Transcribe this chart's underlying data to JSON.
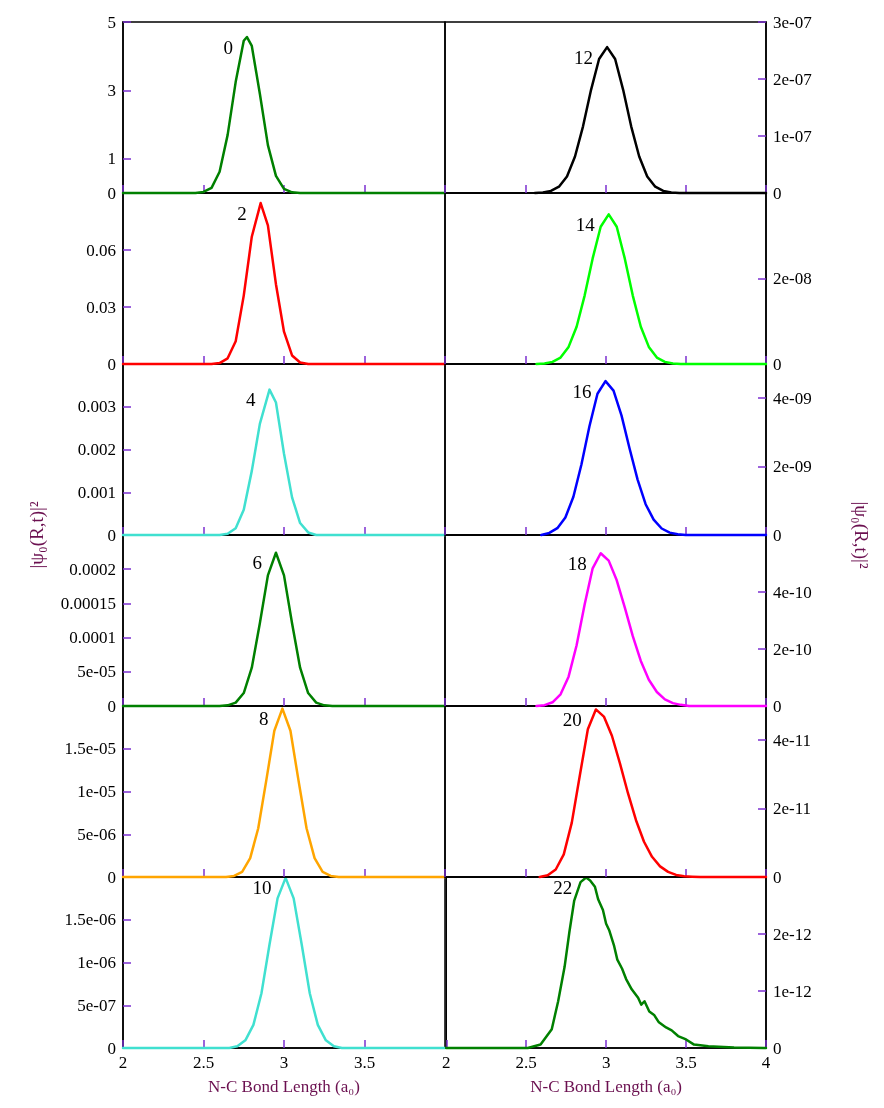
{
  "chart_data": [
    {
      "type": "line",
      "marker": "none",
      "xlim": [
        2,
        4
      ],
      "xticks": [
        2,
        2.5,
        3,
        3.5
      ],
      "ylim": [
        0,
        5
      ],
      "yticks": [
        0,
        1,
        3,
        5
      ],
      "tick_labels": "y",
      "series": [
        {
          "name": "0",
          "color": "#008000",
          "x": [
            2,
            2.45,
            2.5,
            2.55,
            2.6,
            2.65,
            2.7,
            2.75,
            2.77,
            2.8,
            2.85,
            2.9,
            2.95,
            3,
            3.05,
            3.1,
            4
          ],
          "values": [
            0,
            0,
            0.03,
            0.15,
            0.62,
            1.7,
            3.25,
            4.45,
            4.56,
            4.3,
            2.9,
            1.4,
            0.5,
            0.12,
            0.02,
            0,
            0
          ]
        }
      ]
    },
    {
      "type": "line",
      "marker": "none",
      "xlim": [
        2,
        4
      ],
      "xticks": [
        2,
        2.5,
        3,
        3.5,
        4
      ],
      "ylim": [
        0,
        3e-07
      ],
      "yticks": [
        0,
        {
          "value": 1e-07,
          "label": "1e-07"
        },
        {
          "value": 2e-07,
          "label": "2e-07"
        },
        {
          "value": 3e-07,
          "label": "3e-07"
        }
      ],
      "tick_labels": "y",
      "series": [
        {
          "name": "12",
          "color": "#000000",
          "x": [
            2.56,
            2.61,
            2.66,
            2.71,
            2.76,
            2.81,
            2.86,
            2.91,
            2.96,
            3.01,
            3.06,
            3.11,
            3.16,
            3.21,
            3.26,
            3.31,
            3.36,
            3.41,
            3.46,
            4
          ],
          "values": [
            0,
            1e-09,
            3.6e-09,
            1.1e-08,
            2.9e-08,
            6.4e-08,
            1.17e-07,
            1.81e-07,
            2.35e-07,
            2.56e-07,
            2.35e-07,
            1.81e-07,
            1.17e-07,
            6.4e-08,
            2.9e-08,
            1.1e-08,
            3.6e-09,
            1e-09,
            0,
            0
          ]
        }
      ]
    },
    {
      "type": "line",
      "marker": "none",
      "xlim": [
        2,
        4
      ],
      "xticks": [
        2,
        2.5,
        3,
        3.5
      ],
      "ylim": [
        0,
        0.09
      ],
      "yticks": [
        0,
        0.03,
        0.06
      ],
      "tick_labels": "y",
      "series": [
        {
          "name": "2",
          "color": "#ff0000",
          "x": [
            2,
            2.55,
            2.6,
            2.65,
            2.7,
            2.75,
            2.8,
            2.855,
            2.9,
            2.95,
            3,
            3.05,
            3.1,
            3.15,
            4
          ],
          "values": [
            0,
            0,
            0.0005,
            0.003,
            0.012,
            0.036,
            0.067,
            0.0847,
            0.073,
            0.042,
            0.017,
            0.0045,
            0.0008,
            0,
            0
          ]
        }
      ]
    },
    {
      "type": "line",
      "marker": "none",
      "xlim": [
        2,
        4
      ],
      "xticks": [
        2,
        2.5,
        3,
        3.5,
        4
      ],
      "ylim": [
        0,
        4e-08
      ],
      "yticks": [
        0,
        {
          "value": 2e-08,
          "label": "2e-08"
        }
      ],
      "tick_labels": "y",
      "series": [
        {
          "name": "14",
          "color": "#00ff00",
          "x": [
            2.57,
            2.62,
            2.67,
            2.72,
            2.77,
            2.82,
            2.87,
            2.92,
            2.97,
            3.02,
            3.07,
            3.12,
            3.17,
            3.22,
            3.27,
            3.32,
            3.37,
            3.42,
            3.47,
            4
          ],
          "values": [
            0,
            1e-10,
            5e-10,
            1.5e-09,
            4e-09,
            8.7e-09,
            1.6e-08,
            2.47e-08,
            3.21e-08,
            3.5e-08,
            3.21e-08,
            2.47e-08,
            1.6e-08,
            8.7e-09,
            4e-09,
            1.5e-09,
            5e-10,
            1e-10,
            0,
            0
          ]
        }
      ]
    },
    {
      "type": "line",
      "marker": "none",
      "ylabel": "|ψ₀(R,t)|²",
      "xlim": [
        2,
        4
      ],
      "xticks": [
        2,
        2.5,
        3,
        3.5
      ],
      "ylim": [
        0,
        0.004
      ],
      "yticks": [
        0,
        0.001,
        0.002,
        0.003
      ],
      "tick_labels": "y",
      "series": [
        {
          "name": "4",
          "color": "#40e0d0",
          "x": [
            2,
            2.6,
            2.65,
            2.7,
            2.75,
            2.8,
            2.85,
            2.91,
            2.95,
            3,
            3.05,
            3.1,
            3.15,
            3.2,
            4
          ],
          "values": [
            0,
            0,
            3e-05,
            0.00016,
            0.00059,
            0.0015,
            0.0026,
            0.0034,
            0.0031,
            0.0019,
            0.00088,
            0.00028,
            6e-05,
            0,
            0
          ]
        }
      ]
    },
    {
      "type": "line",
      "marker": "none",
      "ylabel": "|ψ₀(R,t)|²",
      "xlim": [
        2,
        4
      ],
      "xticks": [
        2,
        2.5,
        3,
        3.5,
        4
      ],
      "ylim": [
        0,
        5e-09
      ],
      "yticks": [
        0,
        {
          "value": 2e-09,
          "label": "2e-09"
        },
        {
          "value": 4e-09,
          "label": "4e-09"
        }
      ],
      "tick_labels": "y",
      "series": [
        {
          "name": "16",
          "color": "#0000ff",
          "x": [
            2.6,
            2.65,
            2.7,
            2.75,
            2.8,
            2.85,
            2.9,
            2.95,
            3,
            3.05,
            3.1,
            3.15,
            3.2,
            3.25,
            3.3,
            3.35,
            3.4,
            3.45,
            3.5,
            4
          ],
          "values": [
            0,
            6e-11,
            2e-10,
            5.1e-10,
            1.12e-09,
            2.06e-09,
            3.18e-09,
            4.13e-09,
            4.5e-09,
            4.22e-09,
            3.49e-09,
            2.53e-09,
            1.62e-09,
            9e-10,
            4.5e-10,
            1.9e-10,
            7e-11,
            2e-11,
            0,
            0
          ]
        }
      ]
    },
    {
      "type": "line",
      "marker": "none",
      "xlim": [
        2,
        4
      ],
      "xticks": [
        2,
        2.5,
        3,
        3.5
      ],
      "ylim": [
        0,
        0.00025
      ],
      "yticks": [
        0,
        {
          "value": 5e-05,
          "label": "5e-05"
        },
        0.0001,
        0.00015,
        0.0002
      ],
      "tick_labels": "y",
      "series": [
        {
          "name": "6",
          "color": "#008000",
          "x": [
            2,
            2.6,
            2.65,
            2.7,
            2.75,
            2.8,
            2.85,
            2.9,
            2.95,
            3,
            3.05,
            3.1,
            3.15,
            3.2,
            3.25,
            3.3,
            4
          ],
          "values": [
            0,
            0,
            1e-06,
            5e-06,
            1.9e-05,
            5.6e-05,
            0.000121,
            0.000191,
            0.000224,
            0.000191,
            0.000121,
            5.6e-05,
            1.9e-05,
            5e-06,
            1e-06,
            0,
            0
          ]
        }
      ]
    },
    {
      "type": "line",
      "marker": "none",
      "xlim": [
        2,
        4
      ],
      "xticks": [
        2,
        2.5,
        3,
        3.5,
        4
      ],
      "ylim": [
        0,
        6e-10
      ],
      "yticks": [
        0,
        {
          "value": 2e-10,
          "label": "2e-10"
        },
        {
          "value": 4e-10,
          "label": "4e-10"
        }
      ],
      "tick_labels": "y",
      "series": [
        {
          "name": "18",
          "color": "#ff00ff",
          "x": [
            2.57,
            2.62,
            2.67,
            2.72,
            2.77,
            2.82,
            2.87,
            2.92,
            2.97,
            3.02,
            3.07,
            3.12,
            3.17,
            3.22,
            3.27,
            3.32,
            3.37,
            3.42,
            3.47,
            3.52,
            3.57,
            4
          ],
          "values": [
            0,
            3e-12,
            1.3e-11,
            4.1e-11,
            1.03e-10,
            2.13e-10,
            3.56e-10,
            4.83e-10,
            5.36e-10,
            5.1e-10,
            4.41e-10,
            3.46e-10,
            2.45e-10,
            1.58e-10,
            9.2e-11,
            4.9e-11,
            2.3e-11,
            1e-11,
            4e-12,
            0,
            0,
            0
          ]
        }
      ]
    },
    {
      "type": "line",
      "marker": "none",
      "xlim": [
        2,
        4
      ],
      "xticks": [
        2,
        2.5,
        3,
        3.5
      ],
      "ylim": [
        0,
        2e-05
      ],
      "yticks": [
        0,
        {
          "value": 5e-06,
          "label": "5e-06"
        },
        {
          "value": 1e-05,
          "label": "1e-05"
        },
        {
          "value": 1.5e-05,
          "label": "1.5e-05"
        }
      ],
      "tick_labels": "y",
      "series": [
        {
          "name": "8",
          "color": "#ffa500",
          "x": [
            2,
            2.64,
            2.69,
            2.74,
            2.79,
            2.84,
            2.89,
            2.94,
            2.99,
            3.04,
            3.09,
            3.14,
            3.19,
            3.24,
            3.29,
            3.34,
            4
          ],
          "values": [
            0,
            0,
            1.3e-07,
            6e-07,
            2.2e-06,
            5.7e-06,
            1.13e-05,
            1.71e-05,
            1.97e-05,
            1.71e-05,
            1.13e-05,
            5.7e-06,
            2.2e-06,
            6e-07,
            1.3e-07,
            0,
            0
          ]
        }
      ]
    },
    {
      "type": "line",
      "marker": "none",
      "xlim": [
        2,
        4
      ],
      "xticks": [
        2,
        2.5,
        3,
        3.5,
        4
      ],
      "ylim": [
        0,
        5e-11
      ],
      "yticks": [
        0,
        {
          "value": 2e-11,
          "label": "2e-11"
        },
        {
          "value": 4e-11,
          "label": "4e-11"
        }
      ],
      "tick_labels": "y",
      "series": [
        {
          "name": "20",
          "color": "#ff0000",
          "x": [
            2.59,
            2.64,
            2.69,
            2.74,
            2.79,
            2.84,
            2.89,
            2.94,
            2.99,
            3.04,
            3.09,
            3.14,
            3.19,
            3.24,
            3.29,
            3.34,
            3.39,
            3.44,
            3.49,
            3.54,
            3.59,
            4
          ],
          "values": [
            0,
            5e-13,
            2.2e-12,
            6.6e-12,
            1.59e-11,
            2.97e-11,
            4.32e-11,
            4.9e-11,
            4.69e-11,
            4.13e-11,
            3.32e-11,
            2.45e-11,
            1.66e-11,
            1.03e-11,
            5.9e-12,
            3.1e-12,
            1.5e-12,
            6e-13,
            2e-13,
            1e-13,
            0,
            0
          ]
        }
      ]
    },
    {
      "type": "line",
      "marker": "none",
      "xlabel": "N-C Bond Length (a₀)",
      "xlim": [
        2,
        4
      ],
      "xticks": [
        2,
        2.5,
        3,
        3.5
      ],
      "ylim": [
        0,
        2e-06
      ],
      "yticks": [
        0,
        {
          "value": 5e-07,
          "label": "5e-07"
        },
        {
          "value": 1e-06,
          "label": "1e-06"
        },
        {
          "value": 1.5e-06,
          "label": "1.5e-06"
        }
      ],
      "series": [
        {
          "name": "10",
          "color": "#40e0d0",
          "x": [
            2,
            2.66,
            2.71,
            2.76,
            2.81,
            2.86,
            2.91,
            2.96,
            3.01,
            3.06,
            3.11,
            3.16,
            3.21,
            3.26,
            3.31,
            3.36,
            4
          ],
          "values": [
            0,
            0,
            2e-08,
            9e-08,
            2.7e-07,
            6.4e-07,
            1.21e-06,
            1.75e-06,
            1.99e-06,
            1.75e-06,
            1.21e-06,
            6.4e-07,
            2.7e-07,
            9e-08,
            2e-08,
            0,
            0
          ]
        }
      ]
    },
    {
      "type": "line",
      "marker": "none",
      "xlabel": "N-C Bond Length (a₀)",
      "xlim": [
        2,
        4
      ],
      "xticks": [
        2,
        2.5,
        3,
        3.5,
        4
      ],
      "ylim": [
        0,
        3e-12
      ],
      "yticks": [
        0,
        {
          "value": 1e-12,
          "label": "1e-12"
        },
        {
          "value": 2e-12,
          "label": "2e-12"
        }
      ],
      "series": [
        {
          "name": "22",
          "color": "#008000",
          "x": [
            2,
            2.51,
            2.59,
            2.66,
            2.7,
            2.74,
            2.77,
            2.8,
            2.84,
            2.875,
            2.9,
            2.93,
            2.95,
            2.98,
            3,
            3.02,
            3.05,
            3.07,
            3.1,
            3.125,
            3.16,
            3.2,
            3.22,
            3.24,
            3.27,
            3.3,
            3.33,
            3.375,
            3.41,
            3.45,
            3.5,
            3.55,
            3.64,
            3.8,
            4
          ],
          "values": [
            0,
            0,
            6e-14,
            3.3e-13,
            8.2e-13,
            1.42e-12,
            2.03e-12,
            2.58e-12,
            2.91e-12,
            2.99e-12,
            2.94e-12,
            2.83e-12,
            2.61e-12,
            2.42e-12,
            2.18e-12,
            2.06e-12,
            1.79e-12,
            1.55e-12,
            1.39e-12,
            1.21e-12,
            1.03e-12,
            8.8e-13,
            7.6e-13,
            8.2e-13,
            6.4e-13,
            5.8e-13,
            4.5e-13,
            3.6e-13,
            3.1e-13,
            2.1e-13,
            1.5e-13,
            6e-14,
            3e-14,
            1e-14,
            0
          ]
        }
      ]
    }
  ]
}
